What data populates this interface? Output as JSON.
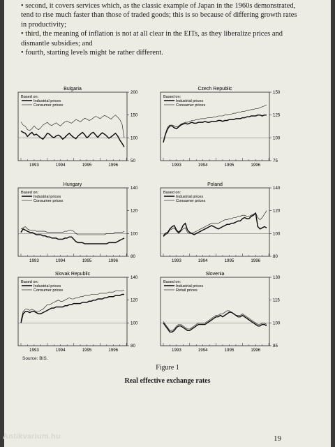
{
  "body_text": {
    "lines": [
      "• second, it covers services which, as the classic example of Japan in the 1960s demonstrated, tend to rise much faster than those of traded goods; this is so because of differing growth rates in productivity;",
      "• third, the meaning of inflation is not at all clear in the EITs, as they liberalize prices and dismantle subsidies; and",
      "• fourth, starting levels might be rather different."
    ]
  },
  "source_note": "Source: BIS.",
  "figure_label": "Figure 1",
  "figure_title": "Real effective exchange rates",
  "page_number": "19",
  "watermark": "Antikvarium.hu",
  "chart_data": [
    {
      "type": "line",
      "title": "Bulgaria",
      "legend_header": "Based on:",
      "x_ticks": [
        "1993",
        "1994",
        "1995",
        "1996"
      ],
      "y_ticks": [
        50,
        100,
        150,
        200
      ],
      "ylim": [
        50,
        200
      ],
      "series": [
        {
          "name": "Industrial prices",
          "style": "thick",
          "values": [
            115,
            112,
            110,
            103,
            108,
            112,
            106,
            108,
            104,
            100,
            97,
            103,
            110,
            108,
            103,
            100,
            104,
            106,
            103,
            97,
            101,
            106,
            110,
            105,
            101,
            98,
            104,
            108,
            112,
            107,
            100,
            104,
            110,
            112,
            106,
            101,
            107,
            111,
            108,
            104,
            99,
            102,
            106,
            110,
            104,
            95,
            88,
            80
          ]
        },
        {
          "name": "Consumer prices",
          "style": "thin",
          "values": [
            135,
            128,
            125,
            118,
            116,
            120,
            126,
            121,
            118,
            122,
            128,
            131,
            134,
            129,
            127,
            130,
            133,
            129,
            126,
            131,
            135,
            137,
            134,
            132,
            136,
            140,
            138,
            135,
            139,
            143,
            141,
            138,
            140,
            144,
            147,
            145,
            142,
            146,
            149,
            147,
            144,
            141,
            146,
            150,
            145,
            140,
            130,
            100
          ]
        }
      ]
    },
    {
      "type": "line",
      "title": "Czech Republic",
      "legend_header": "Based on:",
      "x_ticks": [
        "1993",
        "1994",
        "1995",
        "1996"
      ],
      "y_ticks": [
        75,
        100,
        125,
        150
      ],
      "ylim": [
        75,
        150
      ],
      "series": [
        {
          "name": "Industrial prices",
          "style": "thick",
          "values": [
            95,
            104,
            110,
            113,
            113,
            111,
            110,
            112,
            114,
            115,
            116,
            115,
            116,
            117,
            116,
            116,
            117,
            117,
            117,
            118,
            117,
            117,
            118,
            118,
            118,
            119,
            119,
            118,
            119,
            119,
            120,
            120,
            120,
            121,
            121,
            121,
            122,
            122,
            123,
            123,
            124,
            124,
            124,
            125,
            125,
            124,
            125,
            125
          ]
        },
        {
          "name": "Consumer prices",
          "style": "thin",
          "values": [
            96,
            105,
            112,
            114,
            114,
            113,
            112,
            113,
            115,
            116,
            117,
            117,
            118,
            119,
            119,
            120,
            120,
            121,
            121,
            121,
            122,
            122,
            122,
            123,
            123,
            124,
            124,
            124,
            125,
            125,
            126,
            126,
            127,
            127,
            128,
            128,
            129,
            129,
            130,
            130,
            131,
            131,
            132,
            132,
            133,
            134,
            135,
            136
          ]
        }
      ]
    },
    {
      "type": "line",
      "title": "Hungary",
      "legend_header": "Based on:",
      "x_ticks": [
        "1993",
        "1994",
        "1995",
        "1996"
      ],
      "y_ticks": [
        80,
        100,
        120,
        140
      ],
      "ylim": [
        80,
        140
      ],
      "series": [
        {
          "name": "Industrial prices",
          "style": "thick",
          "values": [
            101,
            104,
            103,
            102,
            101,
            101,
            100,
            99,
            99,
            99,
            98,
            98,
            97,
            97,
            96,
            96,
            96,
            95,
            95,
            95,
            96,
            96,
            97,
            97,
            95,
            93,
            92,
            92,
            92,
            91,
            91,
            91,
            91,
            91,
            91,
            91,
            91,
            91,
            91,
            91,
            92,
            92,
            92,
            92,
            93,
            94,
            95,
            96
          ]
        },
        {
          "name": "Consumer prices",
          "style": "thin",
          "values": [
            104,
            105,
            106,
            104,
            103,
            103,
            103,
            102,
            102,
            102,
            102,
            102,
            101,
            101,
            101,
            101,
            101,
            101,
            101,
            101,
            102,
            102,
            103,
            103,
            102,
            100,
            99,
            99,
            99,
            99,
            99,
            99,
            99,
            99,
            99,
            99,
            99,
            99,
            99,
            100,
            100,
            100,
            100,
            101,
            101,
            101,
            101,
            102
          ]
        }
      ]
    },
    {
      "type": "line",
      "title": "Poland",
      "legend_header": "Based on:",
      "x_ticks": [
        "1993",
        "1994",
        "1995",
        "1996"
      ],
      "y_ticks": [
        80,
        100,
        120,
        140
      ],
      "ylim": [
        80,
        140
      ],
      "series": [
        {
          "name": "Industrial prices",
          "style": "thick",
          "values": [
            98,
            100,
            101,
            104,
            106,
            107,
            103,
            101,
            103,
            107,
            109,
            103,
            101,
            100,
            99,
            100,
            101,
            102,
            103,
            104,
            105,
            106,
            107,
            106,
            105,
            104,
            105,
            106,
            107,
            108,
            108,
            109,
            109,
            110,
            111,
            111,
            113,
            114,
            113,
            113,
            115,
            116,
            118,
            106,
            104,
            105,
            106,
            105
          ]
        },
        {
          "name": "Consumer prices",
          "style": "thin",
          "values": [
            97,
            99,
            100,
            103,
            104,
            105,
            102,
            100,
            102,
            104,
            105,
            101,
            100,
            100,
            101,
            102,
            103,
            104,
            105,
            106,
            107,
            108,
            109,
            109,
            109,
            109,
            110,
            111,
            112,
            112,
            113,
            113,
            114,
            114,
            115,
            115,
            116,
            116,
            115,
            115,
            116,
            117,
            118,
            114,
            112,
            114,
            117,
            120
          ]
        }
      ]
    },
    {
      "type": "line",
      "title": "Slovak Republic",
      "legend_header": "Based on:",
      "x_ticks": [
        "1993",
        "1994",
        "1995",
        "1996"
      ],
      "y_ticks": [
        80,
        100,
        120,
        140
      ],
      "ylim": [
        80,
        140
      ],
      "series": [
        {
          "name": "Industrial prices",
          "style": "thick",
          "values": [
            100,
            108,
            110,
            110,
            109,
            110,
            110,
            109,
            108,
            108,
            109,
            110,
            111,
            112,
            113,
            113,
            114,
            114,
            114,
            114,
            115,
            115,
            116,
            116,
            117,
            117,
            117,
            117,
            118,
            118,
            118,
            119,
            119,
            120,
            120,
            121,
            121,
            121,
            122,
            122,
            123,
            123,
            123,
            124,
            124,
            124,
            125,
            125
          ]
        },
        {
          "name": "Consumer prices",
          "style": "thin",
          "values": [
            102,
            110,
            112,
            112,
            111,
            112,
            111,
            110,
            110,
            111,
            112,
            114,
            116,
            116,
            117,
            118,
            119,
            120,
            119,
            119,
            120,
            121,
            122,
            121,
            121,
            122,
            122,
            123,
            123,
            124,
            124,
            124,
            125,
            125,
            125,
            125,
            126,
            126,
            126,
            126,
            127,
            127,
            127,
            128,
            128,
            128,
            128,
            129
          ]
        }
      ]
    },
    {
      "type": "line",
      "title": "Slovenia",
      "legend_header": "Based on:",
      "x_ticks": [
        "1993",
        "1994",
        "1995",
        "1996"
      ],
      "y_ticks": [
        85,
        100,
        115,
        130
      ],
      "ylim": [
        85,
        130
      ],
      "series": [
        {
          "name": "Industrial prices",
          "style": "thick",
          "values": [
            100,
            98,
            96,
            94,
            94,
            95,
            97,
            98,
            98,
            97,
            96,
            95,
            95,
            96,
            97,
            98,
            99,
            99,
            99,
            99,
            100,
            101,
            102,
            103,
            104,
            104,
            105,
            104,
            105,
            106,
            107,
            107,
            106,
            105,
            104,
            104,
            105,
            104,
            103,
            102,
            101,
            100,
            99,
            98,
            98,
            99,
            99,
            98
          ]
        },
        {
          "name": "Retail prices",
          "style": "thin",
          "values": [
            101,
            99,
            97,
            95,
            95,
            96,
            98,
            99,
            99,
            98,
            97,
            96,
            96,
            97,
            98,
            99,
            100,
            100,
            100,
            100,
            101,
            102,
            103,
            104,
            105,
            105,
            106,
            106,
            107,
            108,
            108,
            107,
            106,
            105,
            105,
            105,
            106,
            105,
            104,
            103,
            102,
            101,
            100,
            99,
            99,
            100,
            100,
            99
          ]
        }
      ]
    }
  ]
}
